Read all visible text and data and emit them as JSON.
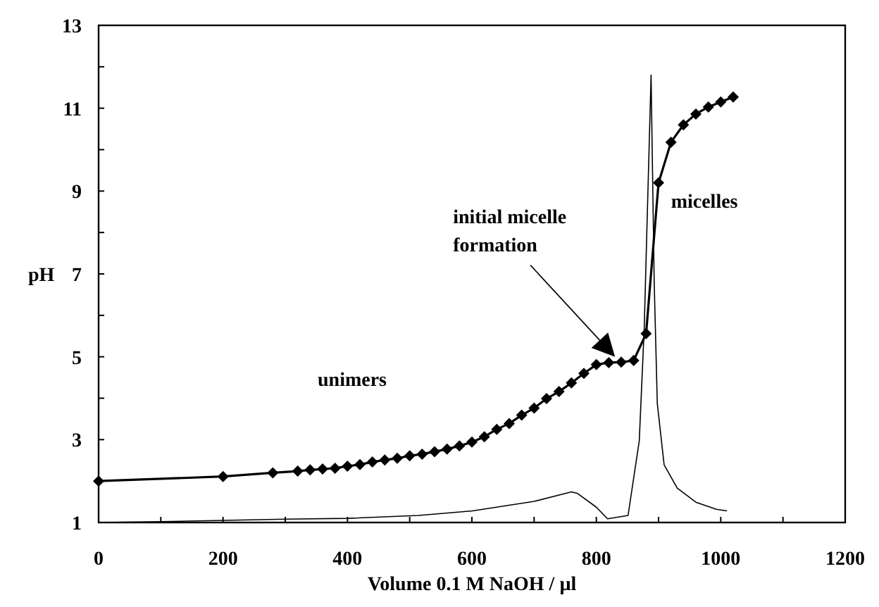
{
  "chart_data": {
    "type": "line",
    "xlabel": "Volume 0.1 M NaOH / µl",
    "ylabel": "pH",
    "xlim": [
      0,
      1200
    ],
    "ylim": [
      1,
      13
    ],
    "xticks": [
      0,
      {
        "value": 100,
        "label": null
      },
      200,
      {
        "value": 300,
        "label": null
      },
      400,
      {
        "value": 500,
        "label": null
      },
      600,
      {
        "value": 700,
        "label": null
      },
      800,
      {
        "value": 900,
        "label": null
      },
      1000,
      {
        "value": 1100,
        "label": null
      },
      1200
    ],
    "yticks": [
      1,
      {
        "value": 2,
        "label": null
      },
      3,
      {
        "value": 4,
        "label": null
      },
      5,
      {
        "value": 6,
        "label": null
      },
      7,
      {
        "value": 8,
        "label": null
      },
      9,
      {
        "value": 10,
        "label": null
      },
      11,
      {
        "value": 12,
        "label": null
      },
      13
    ],
    "series": [
      {
        "color": "#000000",
        "marker": "diamond",
        "x": [
          0,
          200,
          280,
          320,
          340,
          360,
          380,
          400,
          420,
          440,
          460,
          480,
          500,
          520,
          540,
          560,
          580,
          600,
          620,
          640,
          660,
          680,
          700,
          720,
          740,
          760,
          780,
          800,
          820,
          840,
          860,
          880,
          900,
          920,
          940,
          960,
          980,
          1000,
          1020
        ],
        "values": [
          2.0,
          2.11,
          2.2,
          2.24,
          2.27,
          2.29,
          2.31,
          2.36,
          2.4,
          2.46,
          2.51,
          2.55,
          2.61,
          2.65,
          2.71,
          2.77,
          2.85,
          2.94,
          3.07,
          3.25,
          3.39,
          3.59,
          3.76,
          3.99,
          4.16,
          4.37,
          4.6,
          4.81,
          4.86,
          4.87,
          4.91,
          5.56,
          9.2,
          10.18,
          10.6,
          10.86,
          11.03,
          11.15,
          11.27
        ]
      },
      {
        "color": "#000000",
        "marker": "none",
        "x": [
          0,
          100,
          200,
          300,
          400,
          514,
          601,
          700,
          760,
          770,
          800,
          818,
          851,
          869,
          877,
          888,
          893,
          898,
          909,
          930,
          960,
          993,
          1010
        ],
        "values": [
          1.0,
          1.02,
          1.05,
          1.08,
          1.1,
          1.17,
          1.28,
          1.51,
          1.74,
          1.7,
          1.37,
          1.09,
          1.17,
          2.97,
          5.7,
          11.8,
          6.8,
          3.87,
          2.39,
          1.83,
          1.49,
          1.32,
          1.28
        ]
      }
    ],
    "annotations": [
      "unimers",
      "micelles",
      "initial micelle formation"
    ]
  }
}
